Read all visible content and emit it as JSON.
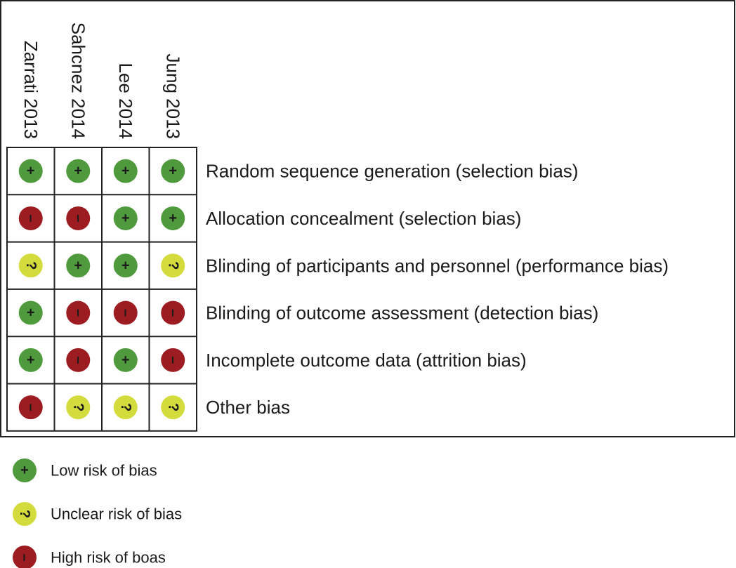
{
  "studies": [
    "Zarrati 2013",
    "Sahcnez 2014",
    "Lee 2014",
    "Jung 2013"
  ],
  "domains": [
    "Random sequence generation (selection bias)",
    "Allocation concealment (selection bias)",
    "Blinding of participants and personnel (performance bias)",
    "Blinding of outcome assessment (detection bias)",
    "Incomplete outcome data (attrition bias)",
    "Other bias"
  ],
  "judgments": [
    [
      "+",
      "+",
      "+",
      "+"
    ],
    [
      "–",
      "–",
      "+",
      "+"
    ],
    [
      "?",
      "+",
      "+",
      "?"
    ],
    [
      "+",
      "–",
      "–",
      "–"
    ],
    [
      "+",
      "–",
      "+",
      "–"
    ],
    [
      "–",
      "?",
      "?",
      "?"
    ]
  ],
  "legend": [
    {
      "symbol": "+",
      "label": "Low risk of bias",
      "color": "#4f9a3c"
    },
    {
      "symbol": "?",
      "label": "Unclear risk of bias",
      "color": "#d3dc3c"
    },
    {
      "symbol": "–",
      "label": "High risk of boas",
      "color": "#9c1c22"
    }
  ]
}
